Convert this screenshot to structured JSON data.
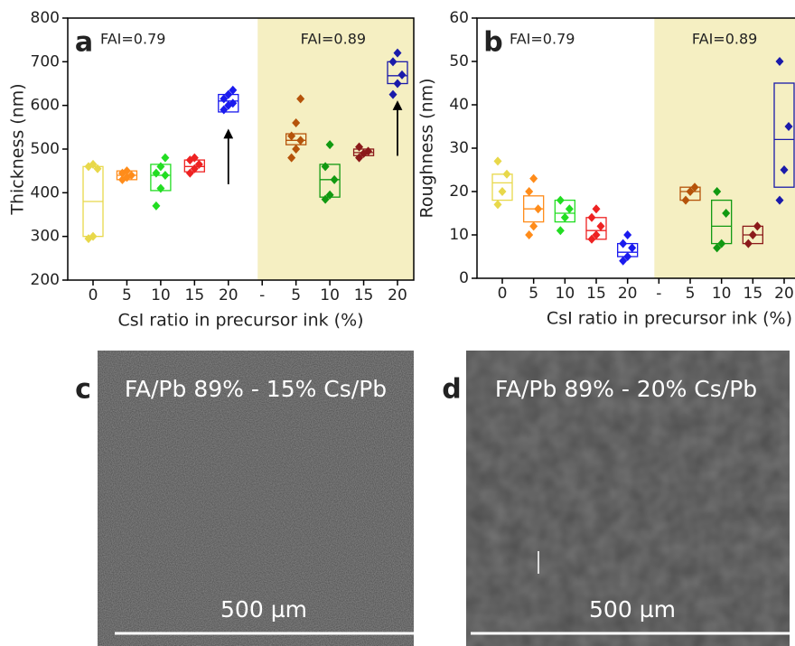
{
  "chart_data": [
    {
      "type": "box",
      "label": "a",
      "ylabel": "Thickness (nm)",
      "xlabel": "CsI ratio in precursor ink (%)",
      "annotations": [
        "FAI=0.79",
        "FAI=0.89"
      ],
      "categories": [
        "0",
        "5",
        "10",
        "15",
        "20",
        "-",
        "5",
        "10",
        "15",
        "20"
      ],
      "colors": [
        "#e8d84a",
        "#ff8c1a",
        "#22dd22",
        "#ee2222",
        "#1a1aee",
        null,
        "#b5530a",
        "#119911",
        "#8b1a1a",
        "#1a1aaa"
      ],
      "highlight_color": "#f5efc2",
      "ylim": [
        200,
        800
      ],
      "yticks": [
        200,
        300,
        400,
        500,
        600,
        700,
        800
      ],
      "boxes": [
        {
          "q1": 300,
          "median": 380,
          "q3": 460,
          "points": [
            295,
            300,
            455,
            460,
            465
          ]
        },
        {
          "q1": 430,
          "median": 440,
          "q3": 450,
          "points": [
            430,
            435,
            440,
            445,
            450
          ]
        },
        {
          "q1": 405,
          "median": 440,
          "q3": 465,
          "points": [
            370,
            410,
            440,
            445,
            460,
            480
          ]
        },
        {
          "q1": 448,
          "median": 460,
          "q3": 475,
          "points": [
            445,
            455,
            465,
            475,
            480
          ]
        },
        {
          "q1": 585,
          "median": 610,
          "q3": 625,
          "points": [
            590,
            600,
            605,
            615,
            625,
            635
          ]
        },
        null,
        {
          "q1": 510,
          "median": 520,
          "q3": 535,
          "points": [
            480,
            500,
            520,
            530,
            560,
            615
          ]
        },
        {
          "q1": 390,
          "median": 430,
          "q3": 465,
          "points": [
            385,
            395,
            430,
            460,
            510
          ]
        },
        {
          "q1": 485,
          "median": 492,
          "q3": 500,
          "points": [
            480,
            490,
            495,
            505
          ]
        },
        {
          "q1": 650,
          "median": 668,
          "q3": 700,
          "points": [
            625,
            650,
            670,
            700,
            720
          ]
        }
      ]
    },
    {
      "type": "box",
      "label": "b",
      "ylabel": "Roughness (nm)",
      "xlabel": "CsI ratio in precursor ink (%)",
      "annotations": [
        "FAI=0.79",
        "FAI=0.89"
      ],
      "categories": [
        "0",
        "5",
        "10",
        "15",
        "20",
        "-",
        "5",
        "10",
        "15",
        "20"
      ],
      "colors": [
        "#e8d84a",
        "#ff8c1a",
        "#22dd22",
        "#ee2222",
        "#1a1aee",
        null,
        "#b5530a",
        "#119911",
        "#8b1a1a",
        "#1a1aaa"
      ],
      "highlight_color": "#f5efc2",
      "ylim": [
        0,
        60
      ],
      "yticks": [
        0,
        10,
        20,
        30,
        40,
        50,
        60
      ],
      "boxes": [
        {
          "q1": 18,
          "median": 22,
          "q3": 24,
          "points": [
            17,
            20,
            24,
            27
          ]
        },
        {
          "q1": 13,
          "median": 16,
          "q3": 19,
          "points": [
            10,
            12,
            16,
            20,
            23
          ]
        },
        {
          "q1": 13,
          "median": 15,
          "q3": 18,
          "points": [
            11,
            14,
            16,
            18
          ]
        },
        {
          "q1": 9,
          "median": 11,
          "q3": 14,
          "points": [
            9,
            10,
            12,
            14,
            16
          ]
        },
        {
          "q1": 5,
          "median": 6,
          "q3": 8,
          "points": [
            4,
            5,
            7,
            8,
            10
          ]
        },
        null,
        {
          "q1": 18,
          "median": 20,
          "q3": 21,
          "points": [
            18,
            20,
            21
          ]
        },
        {
          "q1": 8,
          "median": 12,
          "q3": 18,
          "points": [
            7,
            8,
            15,
            20
          ]
        },
        {
          "q1": 8,
          "median": 10,
          "q3": 12,
          "points": [
            8,
            10,
            12
          ]
        },
        {
          "q1": 21,
          "median": 32,
          "q3": 45,
          "points": [
            18,
            25,
            35,
            50
          ]
        }
      ]
    }
  ],
  "panels": [
    {
      "label": "c",
      "caption": "FA/Pb 89% - 15% Cs/Pb",
      "scale": "500 µm"
    },
    {
      "label": "d",
      "caption": "FA/Pb 89% - 20% Cs/Pb",
      "scale": "500 µm"
    }
  ]
}
